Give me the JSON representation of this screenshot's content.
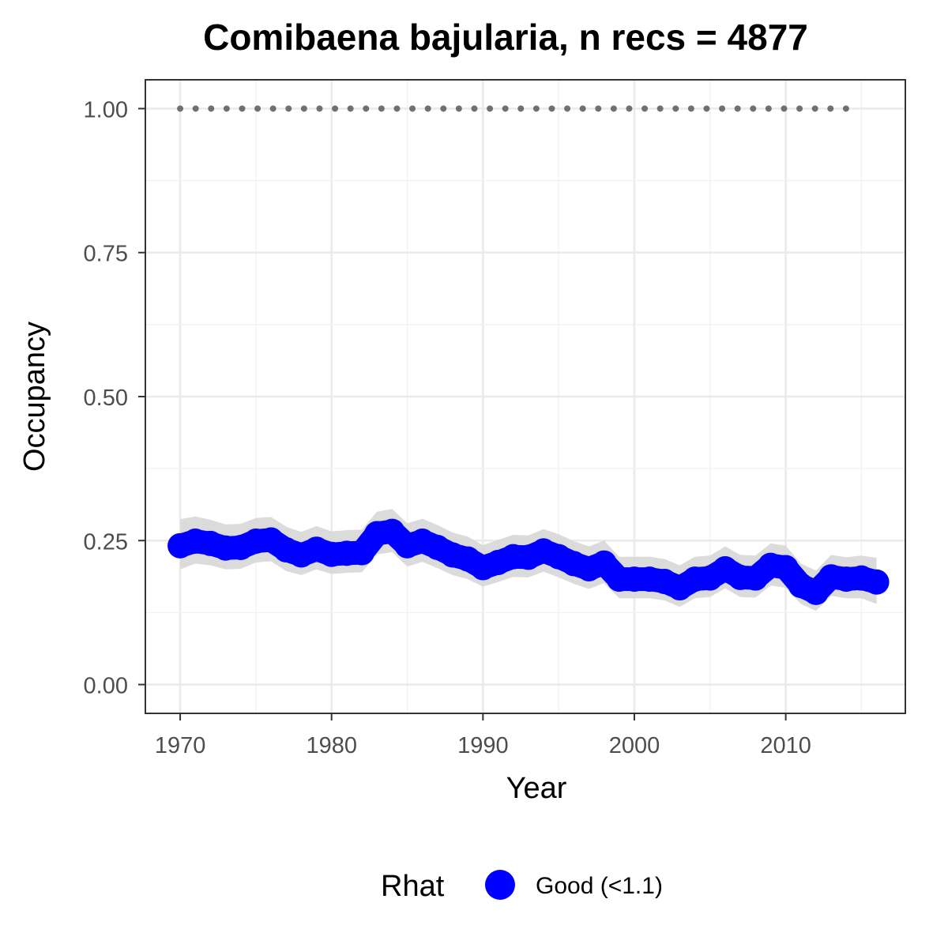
{
  "chart_data": {
    "type": "line",
    "title": "Comibaena bajularia, n recs = 4877",
    "xlabel": "Year",
    "ylabel": "Occupancy",
    "xlim": [
      1967.7,
      2017.9
    ],
    "ylim": [
      -0.05,
      1.05
    ],
    "x_ticks": [
      1970,
      1980,
      1990,
      2000,
      2010
    ],
    "x_tick_labels": [
      "1970",
      "1980",
      "1990",
      "2000",
      "2010"
    ],
    "y_ticks": [
      0,
      0.25,
      0.5,
      0.75,
      1
    ],
    "y_tick_labels": [
      "0.00",
      "0.25",
      "0.50",
      "0.75",
      "1.00"
    ],
    "grid": true,
    "legend_position": "bottom",
    "series": [
      {
        "name": "Good (<1.1)",
        "color": "#0000ff",
        "x": [
          1970,
          1971,
          1972,
          1973,
          1974,
          1975,
          1976,
          1977,
          1978,
          1979,
          1980,
          1981,
          1982,
          1983,
          1984,
          1985,
          1986,
          1987,
          1988,
          1989,
          1990,
          1991,
          1992,
          1993,
          1994,
          1995,
          1996,
          1997,
          1998,
          1999,
          2000,
          2001,
          2002,
          2003,
          2004,
          2005,
          2006,
          2007,
          2008,
          2009,
          2010,
          2011,
          2012,
          2013,
          2014,
          2015,
          2016
        ],
        "y": [
          0.241,
          0.249,
          0.245,
          0.237,
          0.238,
          0.249,
          0.251,
          0.234,
          0.225,
          0.235,
          0.226,
          0.228,
          0.229,
          0.262,
          0.266,
          0.241,
          0.249,
          0.238,
          0.225,
          0.218,
          0.203,
          0.212,
          0.222,
          0.221,
          0.232,
          0.222,
          0.21,
          0.201,
          0.211,
          0.183,
          0.183,
          0.183,
          0.179,
          0.168,
          0.183,
          0.185,
          0.201,
          0.186,
          0.185,
          0.207,
          0.203,
          0.172,
          0.16,
          0.187,
          0.183,
          0.185,
          0.178
        ]
      }
    ],
    "ribbon": {
      "color": "#d9d9d9",
      "lower": [
        0.2,
        0.21,
        0.207,
        0.2,
        0.201,
        0.212,
        0.214,
        0.197,
        0.19,
        0.2,
        0.192,
        0.194,
        0.195,
        0.226,
        0.23,
        0.205,
        0.213,
        0.202,
        0.19,
        0.183,
        0.17,
        0.178,
        0.187,
        0.186,
        0.196,
        0.186,
        0.175,
        0.166,
        0.176,
        0.15,
        0.15,
        0.15,
        0.146,
        0.135,
        0.15,
        0.152,
        0.167,
        0.152,
        0.151,
        0.172,
        0.168,
        0.14,
        0.128,
        0.154,
        0.15,
        0.15,
        0.14
      ],
      "upper": [
        0.287,
        0.292,
        0.286,
        0.278,
        0.279,
        0.289,
        0.291,
        0.274,
        0.265,
        0.275,
        0.266,
        0.268,
        0.269,
        0.3,
        0.305,
        0.28,
        0.288,
        0.277,
        0.264,
        0.257,
        0.242,
        0.251,
        0.26,
        0.259,
        0.27,
        0.261,
        0.249,
        0.24,
        0.25,
        0.222,
        0.222,
        0.222,
        0.218,
        0.207,
        0.222,
        0.224,
        0.24,
        0.225,
        0.224,
        0.245,
        0.241,
        0.21,
        0.198,
        0.225,
        0.221,
        0.224,
        0.22
      ]
    },
    "reference_line": {
      "y": 1.0,
      "x_from": 1970,
      "x_to": 2015,
      "color": "#707070",
      "style": "dotted"
    },
    "legend": {
      "title": "Rhat",
      "entries": [
        {
          "label": "Good (<1.1)",
          "color": "#0000ff"
        }
      ]
    }
  }
}
